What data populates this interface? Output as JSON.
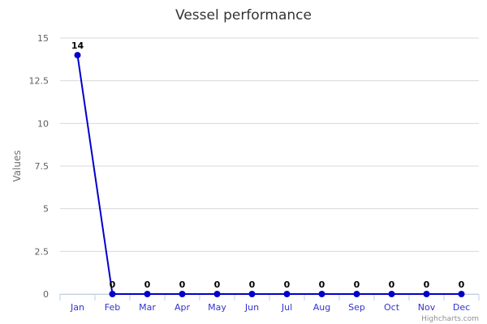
{
  "chart_data": {
    "type": "line",
    "title": "Vessel performance",
    "xlabel": "",
    "ylabel": "Values",
    "categories": [
      "Jan",
      "Feb",
      "Mar",
      "Apr",
      "May",
      "Jun",
      "Jul",
      "Aug",
      "Sep",
      "Oct",
      "Nov",
      "Dec"
    ],
    "series": [
      {
        "values": [
          14,
          0,
          0,
          0,
          0,
          0,
          0,
          0,
          0,
          0,
          0,
          0
        ],
        "color": "#0000cc"
      }
    ],
    "ylim": [
      0,
      15
    ],
    "yticks": [
      "0",
      "2.5",
      "5",
      "7.5",
      "10",
      "12.5",
      "15"
    ],
    "data_labels": [
      "14",
      "0",
      "0",
      "0",
      "0",
      "0",
      "0",
      "0",
      "0",
      "0",
      "0",
      "0"
    ],
    "grid": true,
    "legend": "none"
  },
  "credits": "Highcharts.com",
  "colors": {
    "series": "#0000cc",
    "gridline": "#d8d8d8",
    "tick_label_x": "#3333cc",
    "tick_label_y": "#606060"
  }
}
